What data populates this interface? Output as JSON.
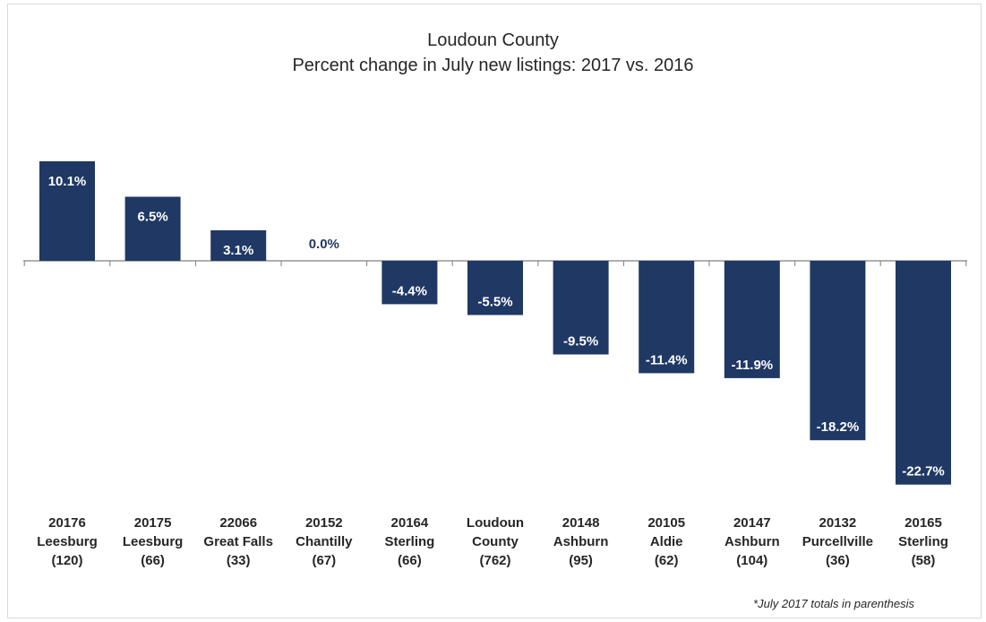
{
  "chart_data": {
    "type": "bar",
    "title": "Loudoun County",
    "subtitle": "Percent change in July new listings: 2017 vs. 2016",
    "categories": [
      [
        "20176",
        "Leesburg",
        "(120)"
      ],
      [
        "20175",
        "Leesburg",
        "(66)"
      ],
      [
        "22066",
        "Great Falls",
        "(33)"
      ],
      [
        "20152",
        "Chantilly",
        "(67)"
      ],
      [
        "20164",
        "Sterling",
        "(66)"
      ],
      [
        "Loudoun",
        "County",
        "(762)"
      ],
      [
        "20148",
        "Ashburn",
        "(95)"
      ],
      [
        "20105",
        "Aldie",
        "(62)"
      ],
      [
        "20147",
        "Ashburn",
        "(104)"
      ],
      [
        "20132",
        "Purcellville",
        "(36)"
      ],
      [
        "20165",
        "Sterling",
        "(58)"
      ]
    ],
    "values": [
      10.1,
      6.5,
      3.1,
      0.0,
      -4.4,
      -5.5,
      -9.5,
      -11.4,
      -11.9,
      -18.2,
      -22.7
    ],
    "data_labels": [
      "10.1%",
      "6.5%",
      "3.1%",
      "0.0%",
      "-4.4%",
      "-5.5%",
      "-9.5%",
      "-11.4%",
      "-11.9%",
      "-18.2%",
      "-22.7%"
    ],
    "ylim": [
      -22.7,
      10.1
    ],
    "grid": false,
    "legend": "none",
    "bar_color": "#1f3864",
    "label_text_color": "#ffffff",
    "zero_label_color": "#1f3864",
    "axis_color": "#7f7f7f",
    "footnote": "*July 2017 totals in parenthesis"
  }
}
